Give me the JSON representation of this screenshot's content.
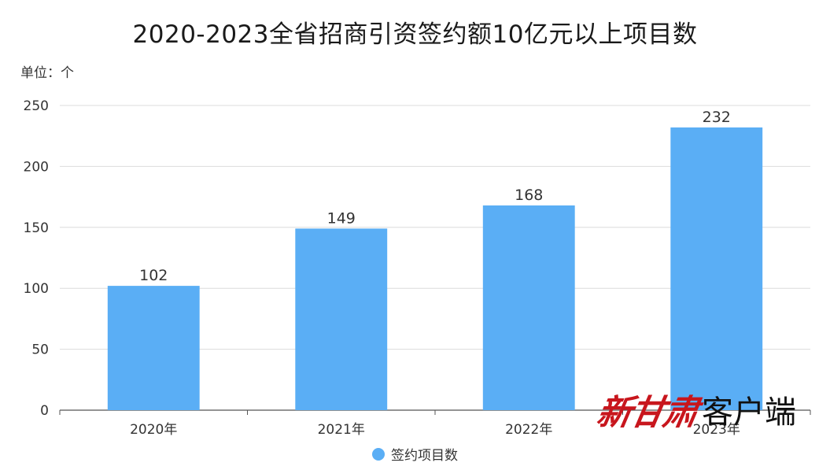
{
  "title": "2020-2023全省招商引资签约额10亿元以上项目数",
  "unit_label": "单位：个",
  "legend": {
    "label": "签约项目数"
  },
  "watermark": {
    "brand": "新甘肃",
    "suffix": "客户端"
  },
  "colors": {
    "bar": "#5aaef5",
    "grid": "#dcdcdc",
    "axis": "#555555",
    "text": "#333333",
    "brand": "#c8161d"
  },
  "chart_data": {
    "type": "bar",
    "title": "2020-2023全省招商引资签约额10亿元以上项目数",
    "xlabel": "",
    "ylabel": "",
    "categories": [
      "2020年",
      "2021年",
      "2022年",
      "2023年"
    ],
    "series": [
      {
        "name": "签约项目数",
        "values": [
          102,
          149,
          168,
          232
        ]
      }
    ],
    "ylim": [
      0,
      250
    ],
    "yticks": [
      0,
      50,
      100,
      150,
      200,
      250
    ],
    "grid": true,
    "legend_position": "bottom"
  }
}
